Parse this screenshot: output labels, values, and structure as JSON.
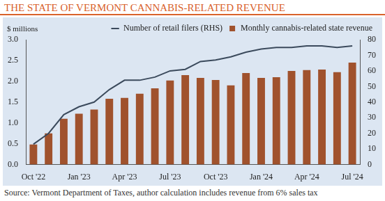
{
  "chart_data": {
    "type": "bar",
    "title": "THE STATE OF VERMONT CANNABIS-RELATED REVENUE",
    "ylabel": "$ millions",
    "source": "Source: Vermont Department of Taxes, author calculation includes revenue from 6% sales tax",
    "categories": [
      "Oct '22",
      null,
      null,
      "Jan '23",
      null,
      null,
      "Apr '23",
      null,
      null,
      "Jul '23",
      null,
      null,
      "Oct '23",
      null,
      null,
      "Jan '24",
      null,
      null,
      "Apr '24",
      null,
      null,
      "Jul '24"
    ],
    "series": [
      {
        "name": "Monthly cannabis-related state revenue",
        "type": "bar",
        "color": "#a0522d",
        "values": [
          0.48,
          0.75,
          1.1,
          1.22,
          1.32,
          1.58,
          1.6,
          1.7,
          1.83,
          2.02,
          2.15,
          2.08,
          2.03,
          1.9,
          2.2,
          2.08,
          2.1,
          2.25,
          2.27,
          2.28,
          2.22,
          2.45
        ]
      },
      {
        "name": "Number of retail filers (RHS)",
        "type": "line",
        "color": "#3b4a5c",
        "axis": "y2",
        "values": [
          13,
          20,
          32,
          37,
          40,
          48,
          54,
          54,
          56,
          60,
          61,
          66,
          67,
          69,
          72,
          74,
          75,
          75,
          76,
          76,
          75,
          76
        ]
      }
    ],
    "ylim": [
      0,
      3
    ],
    "yticks": [
      {
        "value": 0,
        "label": "0.0"
      },
      {
        "value": 0.5,
        "label": "0.5"
      },
      {
        "value": 1,
        "label": "1.0"
      },
      {
        "value": 1.5,
        "label": "1.5"
      },
      {
        "value": 2,
        "label": "2.0"
      },
      {
        "value": 2.5,
        "label": "2.5"
      },
      {
        "value": 3,
        "label": "3.0"
      }
    ],
    "y2lim": [
      0,
      80
    ],
    "y2ticks": [
      0,
      10,
      20,
      30,
      40,
      50,
      60,
      70,
      80
    ],
    "grid": false,
    "legend": "top right"
  }
}
